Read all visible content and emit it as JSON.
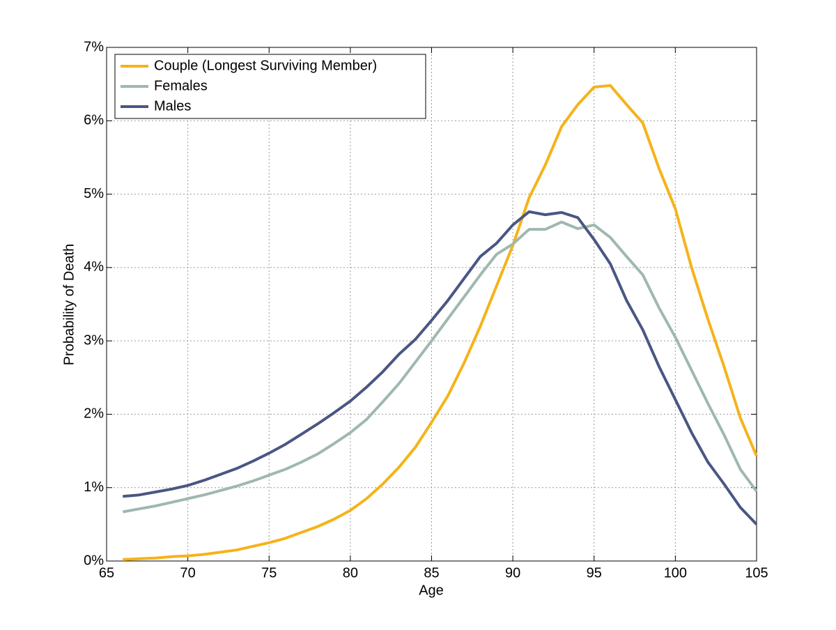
{
  "chart_data": {
    "type": "line",
    "xlabel": "Age",
    "ylabel": "Probability of Death",
    "x": [
      66,
      67,
      68,
      69,
      70,
      71,
      72,
      73,
      74,
      75,
      76,
      77,
      78,
      79,
      80,
      81,
      82,
      83,
      84,
      85,
      86,
      87,
      88,
      89,
      90,
      91,
      92,
      93,
      94,
      95,
      96,
      97,
      98,
      99,
      100,
      101,
      102,
      103,
      104,
      105
    ],
    "series": [
      {
        "name": "Couple (Longest Surviving Member)",
        "color": "#f5b31a",
        "values": [
          0.02,
          0.03,
          0.04,
          0.06,
          0.07,
          0.09,
          0.12,
          0.15,
          0.2,
          0.25,
          0.31,
          0.39,
          0.47,
          0.57,
          0.69,
          0.85,
          1.05,
          1.28,
          1.55,
          1.89,
          2.25,
          2.7,
          3.2,
          3.75,
          4.3,
          4.95,
          5.4,
          5.92,
          6.22,
          6.46,
          6.48,
          6.22,
          5.97,
          5.35,
          4.8,
          4.0,
          3.3,
          2.65,
          1.95,
          1.43
        ]
      },
      {
        "name": "Females",
        "color": "#9fb8b0",
        "values": [
          0.67,
          0.71,
          0.75,
          0.8,
          0.85,
          0.9,
          0.96,
          1.02,
          1.09,
          1.17,
          1.25,
          1.35,
          1.46,
          1.6,
          1.75,
          1.93,
          2.17,
          2.42,
          2.71,
          3.0,
          3.3,
          3.6,
          3.9,
          4.18,
          4.32,
          4.52,
          4.52,
          4.62,
          4.53,
          4.58,
          4.41,
          4.15,
          3.9,
          3.45,
          3.05,
          2.6,
          2.15,
          1.72,
          1.25,
          0.95
        ]
      },
      {
        "name": "Males",
        "color": "#4a5683",
        "values": [
          0.88,
          0.9,
          0.94,
          0.98,
          1.03,
          1.1,
          1.18,
          1.26,
          1.36,
          1.47,
          1.59,
          1.73,
          1.87,
          2.02,
          2.18,
          2.37,
          2.58,
          2.82,
          3.02,
          3.28,
          3.55,
          3.85,
          4.15,
          4.33,
          4.58,
          4.76,
          4.72,
          4.75,
          4.68,
          4.38,
          4.05,
          3.55,
          3.15,
          2.65,
          2.2,
          1.75,
          1.35,
          1.05,
          0.73,
          0.5
        ]
      }
    ],
    "xlim": [
      65,
      105
    ],
    "xticks": [
      65,
      70,
      75,
      80,
      85,
      90,
      95,
      100,
      105
    ],
    "ylim": [
      0,
      7
    ],
    "yticks": [
      {
        "value": 0,
        "label": "0%"
      },
      {
        "value": 1,
        "label": "1%"
      },
      {
        "value": 2,
        "label": "2%"
      },
      {
        "value": 3,
        "label": "3%"
      },
      {
        "value": 4,
        "label": "4%"
      },
      {
        "value": 5,
        "label": "5%"
      },
      {
        "value": 6,
        "label": "6%"
      },
      {
        "value": 7,
        "label": "7%"
      }
    ],
    "grid": true,
    "legend": "upper left"
  }
}
